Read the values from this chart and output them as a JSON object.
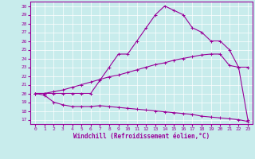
{
  "xlabel": "Windchill (Refroidissement éolien,°C)",
  "bg_color": "#c8ecec",
  "line_color": "#990099",
  "grid_color": "#b0d8d8",
  "xlim": [
    -0.5,
    23.5
  ],
  "ylim": [
    16.5,
    30.5
  ],
  "xticks": [
    0,
    1,
    2,
    3,
    4,
    5,
    6,
    7,
    8,
    9,
    10,
    11,
    12,
    13,
    14,
    15,
    16,
    17,
    18,
    19,
    20,
    21,
    22,
    23
  ],
  "yticks": [
    17,
    18,
    19,
    20,
    21,
    22,
    23,
    24,
    25,
    26,
    27,
    28,
    29,
    30
  ],
  "line1_x": [
    0,
    1,
    2,
    3,
    4,
    5,
    6,
    7,
    8,
    9,
    10,
    11,
    12,
    13,
    14,
    15,
    16,
    17,
    18,
    19,
    20,
    21,
    22,
    23
  ],
  "line1_y": [
    20.0,
    19.8,
    19.0,
    18.7,
    18.5,
    18.5,
    18.5,
    18.6,
    18.5,
    18.4,
    18.3,
    18.2,
    18.1,
    18.0,
    17.9,
    17.8,
    17.7,
    17.6,
    17.4,
    17.3,
    17.2,
    17.1,
    17.0,
    16.8
  ],
  "line2_x": [
    0,
    1,
    2,
    3,
    4,
    5,
    6,
    7,
    8,
    9,
    10,
    11,
    12,
    13,
    14,
    15,
    16,
    17,
    18,
    19,
    20,
    21,
    22,
    23
  ],
  "line2_y": [
    20.0,
    20.0,
    20.2,
    20.4,
    20.7,
    21.0,
    21.3,
    21.6,
    21.9,
    22.1,
    22.4,
    22.7,
    23.0,
    23.3,
    23.5,
    23.8,
    24.0,
    24.2,
    24.4,
    24.5,
    24.5,
    23.2,
    23.0,
    23.0
  ],
  "line3_x": [
    0,
    1,
    2,
    3,
    4,
    5,
    6,
    7,
    8,
    9,
    10,
    11,
    12,
    13,
    14,
    15,
    16,
    17,
    18,
    19,
    20,
    21,
    22,
    23
  ],
  "line3_y": [
    20.0,
    20.0,
    20.0,
    20.0,
    20.0,
    20.0,
    20.0,
    21.5,
    23.0,
    24.5,
    24.5,
    26.0,
    27.5,
    29.0,
    30.0,
    29.5,
    29.0,
    27.5,
    27.0,
    26.0,
    26.0,
    25.0,
    23.0,
    17.0
  ]
}
